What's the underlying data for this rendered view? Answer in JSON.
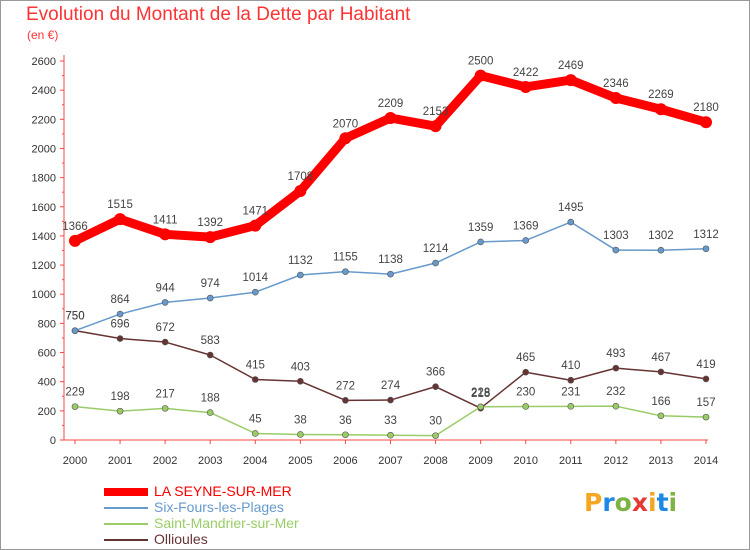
{
  "title": "Evolution du Montant de la Dette par Habitant",
  "unit": "(en €)",
  "logo": {
    "text": "Proxiti",
    "colors": [
      "#f5a623",
      "#1e88e5",
      "#7cb342",
      "#e53935",
      "#f5a623",
      "#1e88e5",
      "#7cb342"
    ]
  },
  "chart_data": {
    "type": "line",
    "title": "Evolution du Montant de la Dette par Habitant",
    "subtitle": "(en €)",
    "x": [
      "2000",
      "2001",
      "2002",
      "2003",
      "2004",
      "2005",
      "2006",
      "2007",
      "2008",
      "2009",
      "2010",
      "2011",
      "2012",
      "2013",
      "2014"
    ],
    "ylim": [
      0,
      2600
    ],
    "yticks": [
      0,
      200,
      400,
      600,
      800,
      1000,
      1200,
      1400,
      1600,
      1800,
      2000,
      2200,
      2400,
      2600
    ],
    "grid": false,
    "legend_position": "bottom-left",
    "series": [
      {
        "name": "LA SEYNE-SUR-MER",
        "color": "#ff0000",
        "values": [
          1366,
          1515,
          1411,
          1392,
          1471,
          1708,
          2070,
          2209,
          2153,
          2500,
          2422,
          2469,
          2346,
          2269,
          2180
        ]
      },
      {
        "name": "Six-Fours-les-Plages",
        "color": "#6699cc",
        "values": [
          750,
          864,
          944,
          974,
          1014,
          1132,
          1155,
          1138,
          1214,
          1359,
          1369,
          1495,
          1303,
          1302,
          1312
        ]
      },
      {
        "name": "Saint-Mandrier-sur-Mer",
        "color": "#99cc66",
        "values": [
          229,
          198,
          217,
          188,
          45,
          38,
          36,
          33,
          30,
          228,
          230,
          231,
          232,
          166,
          157
        ]
      },
      {
        "name": "Ollioules",
        "color": "#663333",
        "values": [
          750,
          696,
          672,
          583,
          415,
          403,
          272,
          274,
          366,
          218,
          465,
          410,
          493,
          467,
          419
        ]
      }
    ]
  }
}
